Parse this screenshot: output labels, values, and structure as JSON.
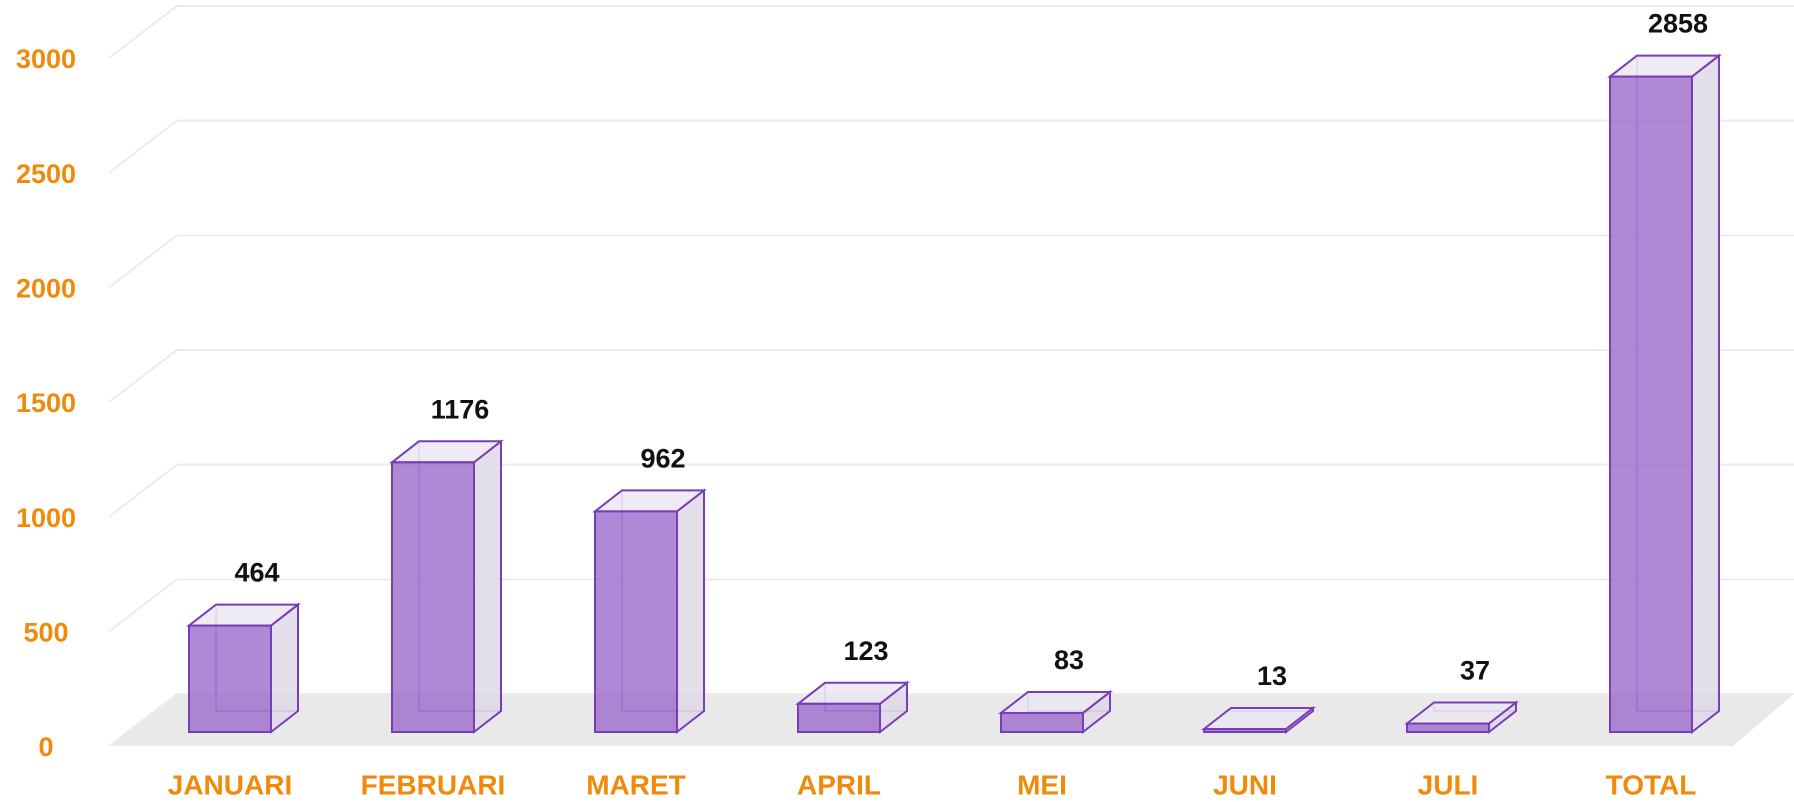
{
  "chart_data": {
    "type": "bar3d",
    "categories": [
      "JANUARI",
      "FEBRUARI",
      "MARET",
      "APRIL",
      "MEI",
      "JUNI",
      "JULI",
      "TOTAL"
    ],
    "values": [
      464,
      1176,
      962,
      123,
      83,
      13,
      37,
      2858
    ],
    "color": "#9b6bcb",
    "ylim": [
      0,
      3000
    ],
    "yticks": [
      0,
      500,
      1000,
      1500,
      2000,
      2500,
      3000
    ],
    "grid": true
  }
}
